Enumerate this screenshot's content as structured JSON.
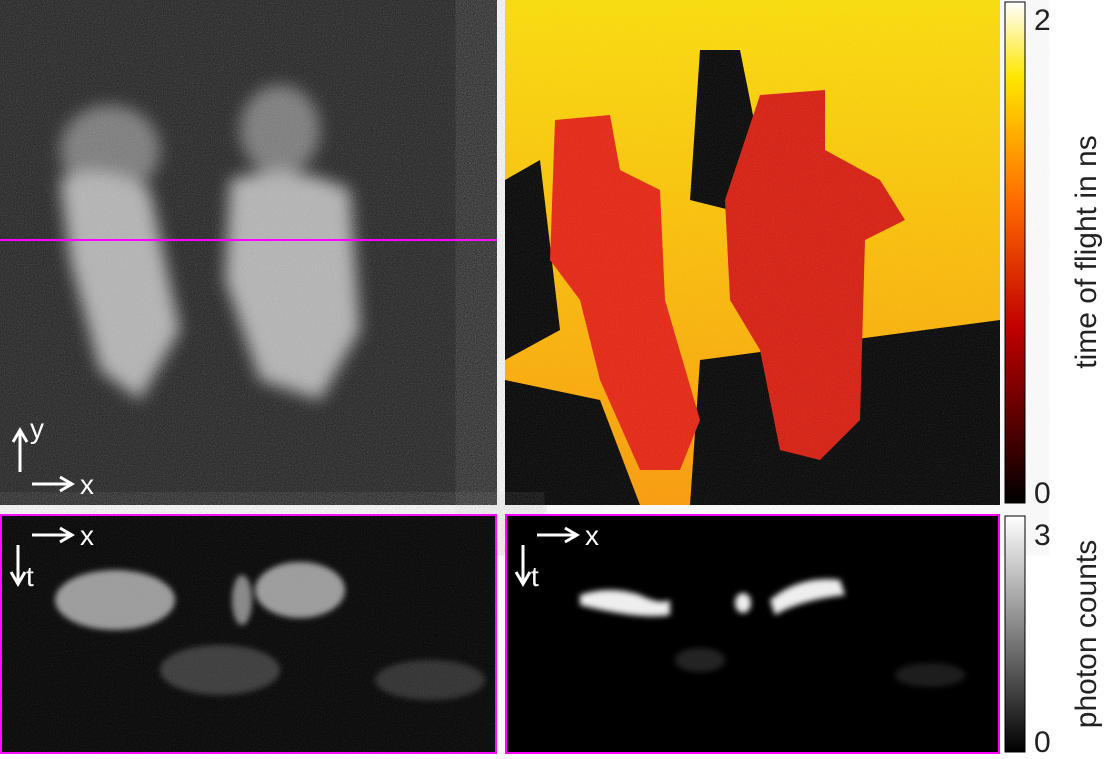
{
  "panels": {
    "intensity": {
      "axis_labels": [
        "y",
        "x"
      ]
    },
    "xt_raw": {
      "axis_labels": [
        "x",
        "t"
      ]
    },
    "xt_processed": {
      "axis_labels": [
        "x",
        "t"
      ]
    }
  },
  "colorbars": [
    {
      "label": "time of flight in ns",
      "ticks": [
        0,
        2
      ]
    },
    {
      "label": "photon counts",
      "ticks": [
        0,
        3
      ]
    }
  ]
}
